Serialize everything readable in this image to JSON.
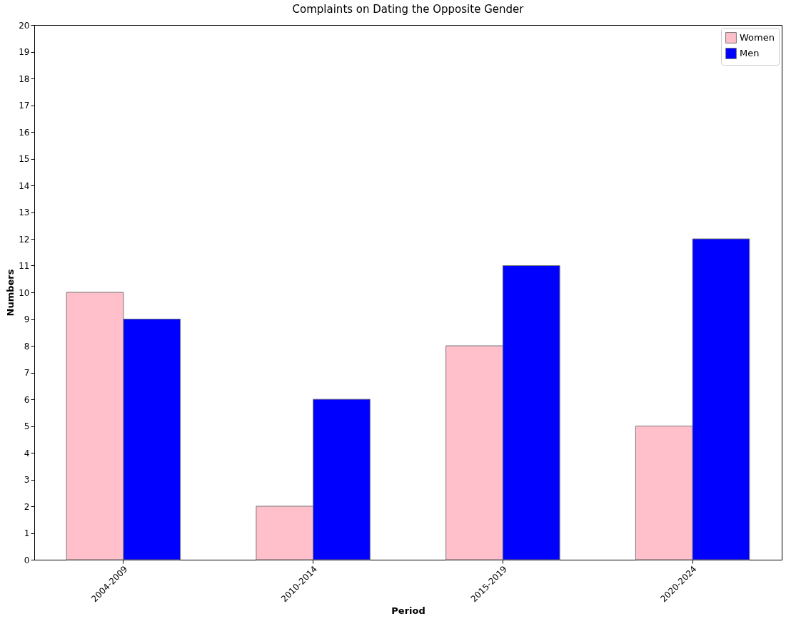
{
  "chart_data": {
    "type": "bar",
    "title": "Complaints on Dating the Opposite Gender",
    "xlabel": "Period",
    "ylabel": "Numbers",
    "categories": [
      "2004-2009",
      "2010-2014",
      "2015-2019",
      "2020-2024"
    ],
    "series": [
      {
        "name": "Women",
        "color": "#ffc0cb",
        "values": [
          10,
          2,
          8,
          5
        ]
      },
      {
        "name": "Men",
        "color": "#0000ff",
        "values": [
          9,
          6,
          11,
          12
        ]
      }
    ],
    "ylim": [
      0,
      20
    ],
    "yticks": [
      0,
      1,
      2,
      3,
      4,
      5,
      6,
      7,
      8,
      9,
      10,
      11,
      12,
      13,
      14,
      15,
      16,
      17,
      18,
      19,
      20
    ],
    "grid": false,
    "legend": "top right"
  }
}
